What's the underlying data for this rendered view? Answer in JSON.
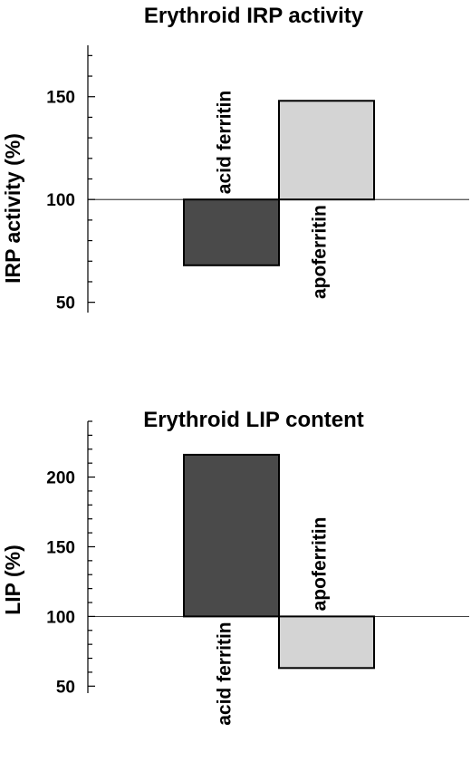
{
  "chart_data": [
    {
      "type": "bar",
      "title": "Erythroid IRP activity",
      "ylabel": "IRP activity (%)",
      "xlabel": "",
      "baseline": 100,
      "ylim": [
        45,
        175
      ],
      "yticks": [
        50,
        100,
        150
      ],
      "categories": [
        "acid ferritin",
        "apoferritin"
      ],
      "values": [
        68,
        148
      ],
      "colors": [
        "#4a4a4a",
        "#d4d4d4"
      ]
    },
    {
      "type": "bar",
      "title": "Erythroid LIP content",
      "ylabel": "LIP  (%)",
      "xlabel": "",
      "baseline": 100,
      "ylim": [
        45,
        240
      ],
      "yticks": [
        50,
        100,
        150,
        200
      ],
      "categories": [
        "acid ferritin",
        "apoferritin"
      ],
      "values": [
        216,
        63
      ],
      "colors": [
        "#4a4a4a",
        "#d4d4d4"
      ]
    }
  ]
}
